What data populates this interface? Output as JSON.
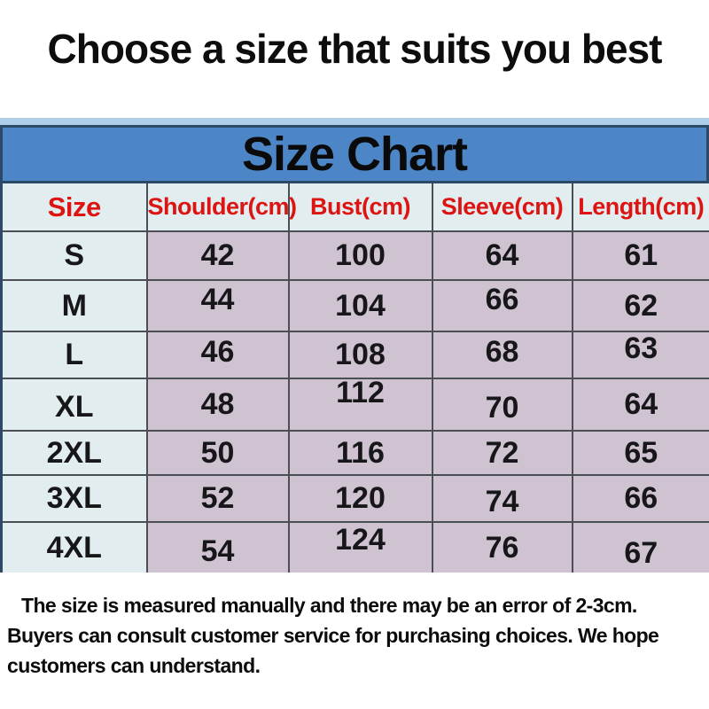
{
  "title": "Choose a size that suits you best",
  "chart_data": {
    "type": "table",
    "title": "Size Chart",
    "columns": [
      "Size",
      "Shoulder(cm)",
      "Bust(cm)",
      "Sleeve(cm)",
      "Length(cm)"
    ],
    "rows": [
      [
        "S",
        42,
        100,
        64,
        61
      ],
      [
        "M",
        44,
        104,
        66,
        62
      ],
      [
        "L",
        46,
        108,
        68,
        63
      ],
      [
        "XL",
        48,
        112,
        70,
        64
      ],
      [
        "2XL",
        50,
        116,
        72,
        65
      ],
      [
        "3XL",
        52,
        120,
        74,
        66
      ],
      [
        "4XL",
        54,
        124,
        76,
        67
      ]
    ],
    "units": "cm",
    "layout": "grid on, banner header on top"
  },
  "footer": {
    "lines": [
      "The size is measured manually and there may be an error of 2-3cm.",
      "Buyers can consult customer service for purchasing choices. We hope",
      "customers can understand."
    ]
  },
  "colors": {
    "banner_blue": "#4c86c6",
    "banner_top_strip": "#aecde8",
    "outer_border": "#2c4a67",
    "grid_line": "#4b4e54",
    "header_cell_bg": "#e2edf0",
    "size_column_bg": "#e2edf0",
    "data_cell_bg": "#cfc3d2",
    "header_text_red": "#dc1412",
    "body_text": "#121212"
  }
}
